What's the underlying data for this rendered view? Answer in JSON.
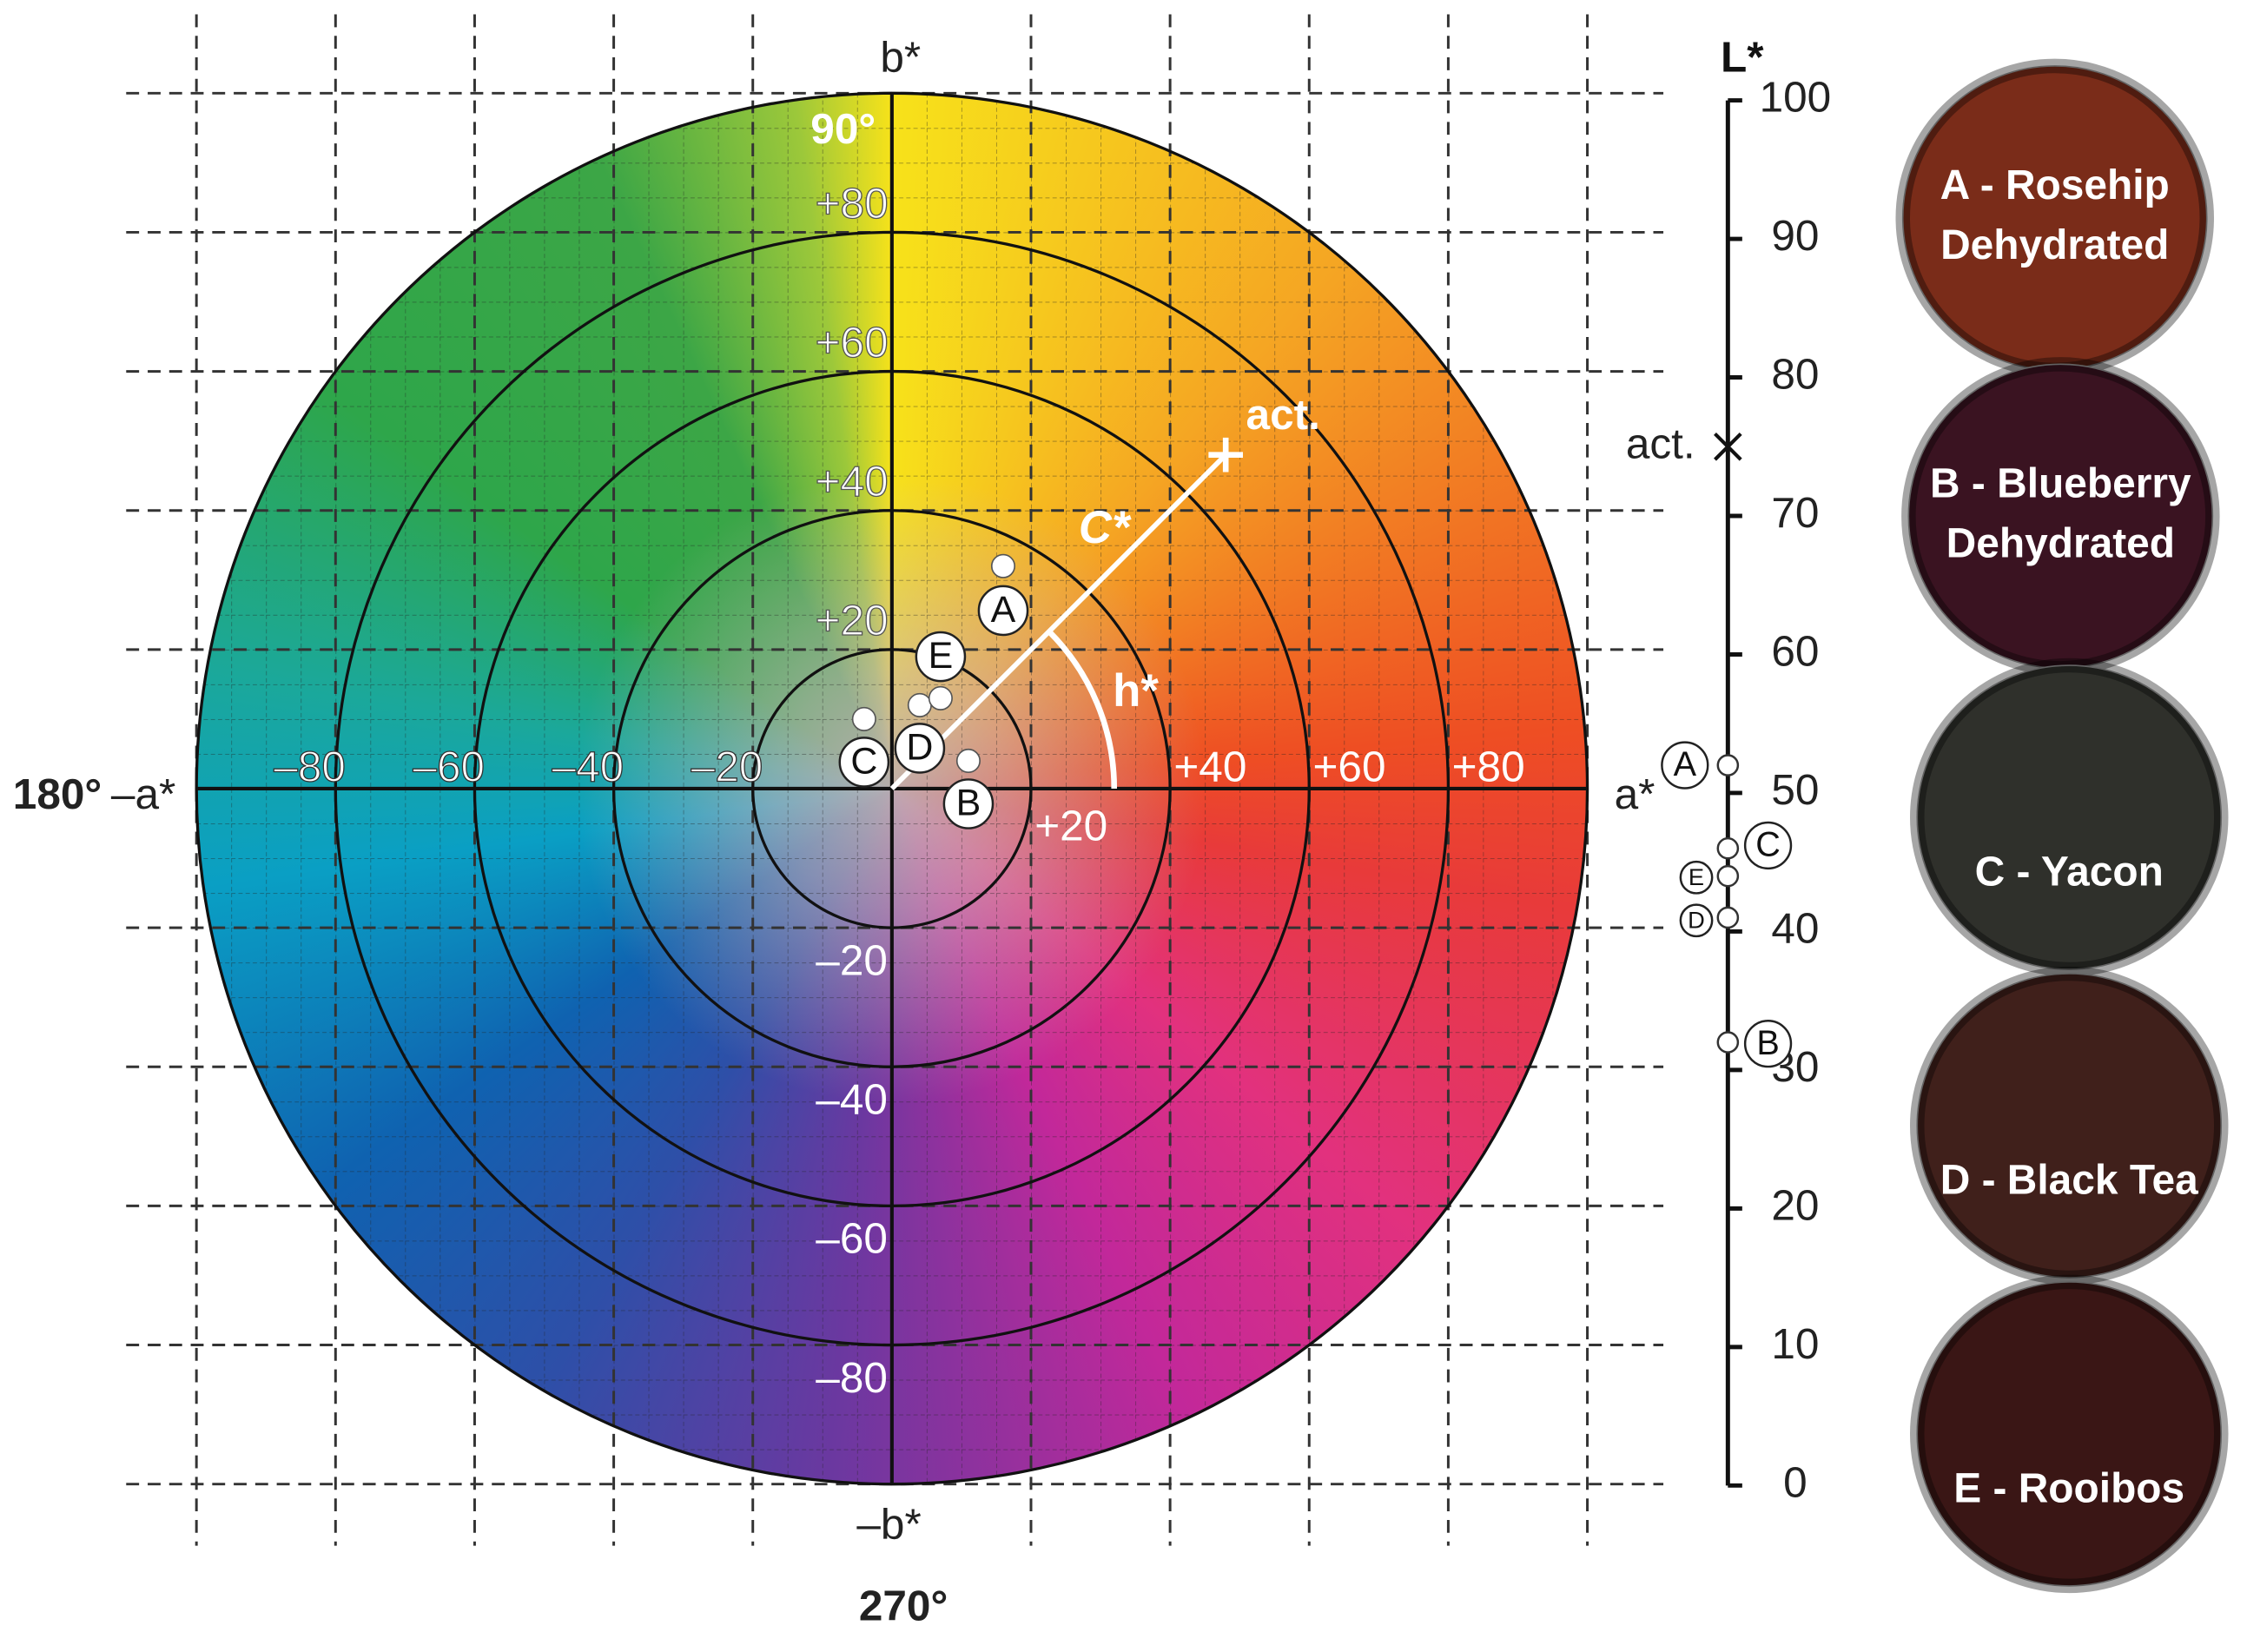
{
  "chart_data": {
    "type": "scatter",
    "x_label": "a*",
    "x_neg_label": "–a*",
    "y_label": "b*",
    "y_neg_label": "–b*",
    "angle_90": "90°",
    "angle_180": "180°",
    "angle_270": "270°",
    "xlim": [
      -100,
      100
    ],
    "ylim": [
      -100,
      100
    ],
    "xticks": [
      {
        "value": -80,
        "label": "–80"
      },
      {
        "value": -60,
        "label": "–60"
      },
      {
        "value": -40,
        "label": "–40"
      },
      {
        "value": -20,
        "label": "–20"
      },
      {
        "value": 20,
        "label": "+20"
      },
      {
        "value": 40,
        "label": "+40"
      },
      {
        "value": 60,
        "label": "+60"
      },
      {
        "value": 80,
        "label": "+80"
      }
    ],
    "yticks": [
      {
        "value": 80,
        "label": "+80"
      },
      {
        "value": 60,
        "label": "+60"
      },
      {
        "value": 40,
        "label": "+40"
      },
      {
        "value": 20,
        "label": "+20"
      },
      {
        "value": -20,
        "label": "–20"
      },
      {
        "value": -40,
        "label": "–40"
      },
      {
        "value": -60,
        "label": "–60"
      },
      {
        "value": -80,
        "label": "–80"
      }
    ],
    "points": {
      "labels": [
        "A",
        "B",
        "C",
        "D",
        "E"
      ],
      "a": [
        16,
        11,
        -4,
        4,
        7
      ],
      "b": [
        32,
        4,
        10,
        12,
        13
      ],
      "L": [
        52,
        32,
        46,
        41,
        44
      ]
    },
    "act": {
      "label": "act.",
      "a": 48,
      "b": 48,
      "L": 75,
      "chroma_label": "C*",
      "hue_label": "h*"
    },
    "l_axis": {
      "title": "L*",
      "lim": [
        0,
        100
      ],
      "ticks": [
        0,
        10,
        20,
        30,
        40,
        50,
        60,
        70,
        80,
        90,
        100
      ]
    },
    "samples": [
      {
        "lines": [
          "A - Rosehip",
          "Dehydrated"
        ],
        "color": "#7a2c19"
      },
      {
        "lines": [
          "B - Blueberry",
          "Dehydrated"
        ],
        "color": "#3a1321"
      },
      {
        "lines": [
          "C - Yacon"
        ],
        "color": "#2f302b"
      },
      {
        "lines": [
          "D - Black Tea"
        ],
        "color": "#40201b"
      },
      {
        "lines": [
          "E - Rooibos"
        ],
        "color": "#3a1615"
      }
    ]
  }
}
